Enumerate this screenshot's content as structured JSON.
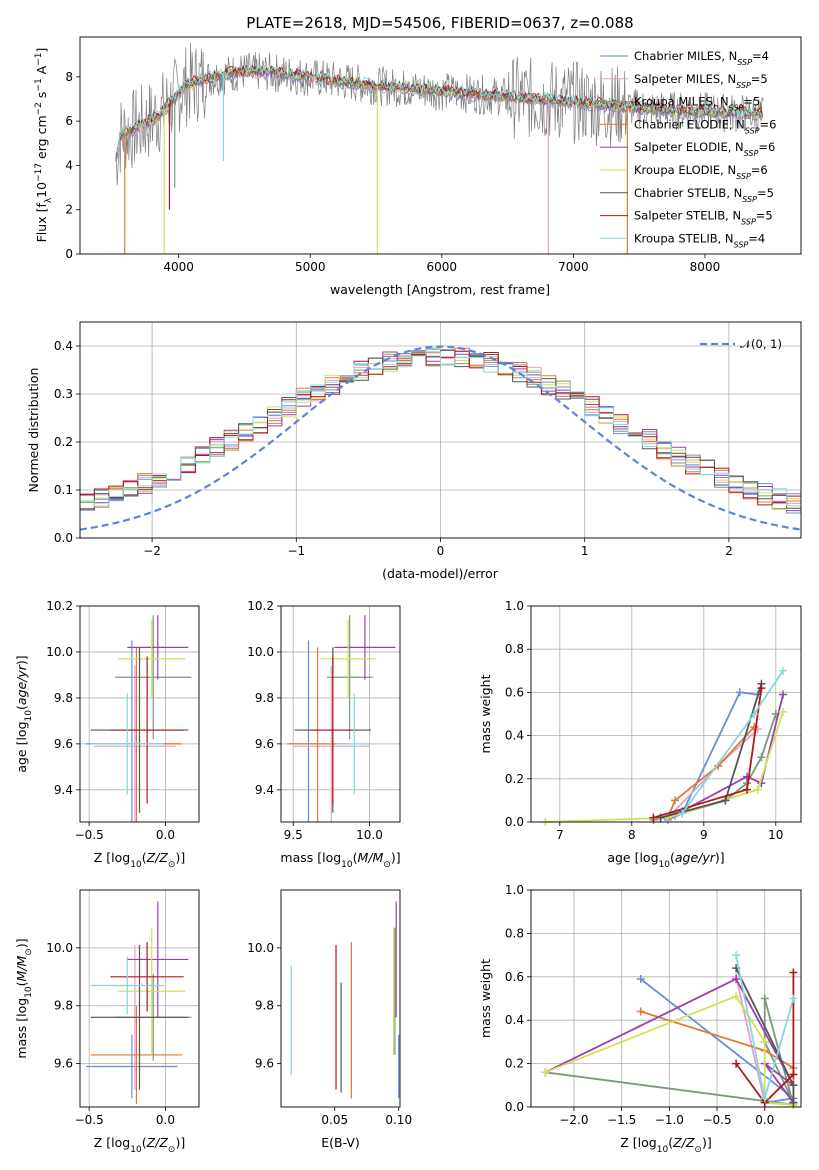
{
  "figure_title": "PLATE=2618, MJD=54506, FIBERID=0637, z=0.088",
  "series_colors": [
    "#6a8fd6",
    "#e9a0c8",
    "#7a9a7a",
    "#e07a3a",
    "#9b3fb0",
    "#cfe25a",
    "#555555",
    "#b01818",
    "#86d8dc"
  ],
  "chart_data": [
    {
      "type": "line",
      "title": "PLATE=2618, MJD=54506, FIBERID=0637, z=0.088",
      "xlabel": "wavelength [Angstrom, rest frame]",
      "ylabel": "Flux [f_λ 10^-17 erg cm^-2 s^-1 A^-1]",
      "xlim": [
        3250,
        8730
      ],
      "ylim": [
        0,
        9.8
      ],
      "xticks": [
        "4000",
        "5000",
        "6000",
        "7000",
        "8000"
      ],
      "yticks": [
        "0",
        "2",
        "4",
        "6",
        "8"
      ],
      "grid": false,
      "legend_placement": "upper right",
      "legend": [
        "Chabrier MILES, N_SSP=4",
        "Salpeter MILES, N_SSP=5",
        "Kroupa MILES, N_SSP=5",
        "Chabrier ELODIE, N_SSP=6",
        "Salpeter ELODIE, N_SSP=6",
        "Kroupa ELODIE, N_SSP=6",
        "Chabrier STELIB, N_SSP=5",
        "Salpeter STELIB, N_SSP=5",
        "Kroupa STELIB, N_SSP=4"
      ],
      "continuum": {
        "x": [
          3520,
          3560,
          3650,
          3750,
          3850,
          3950,
          4050,
          4200,
          4350,
          4500,
          4700,
          4900,
          5100,
          5300,
          5500,
          5700,
          5900,
          6100,
          6300,
          6500,
          6700,
          6900,
          7100,
          7300,
          7500,
          7700,
          7900,
          8100,
          8300,
          8450
        ],
        "y": [
          4.2,
          5.4,
          5.6,
          5.9,
          6.3,
          6.9,
          7.6,
          7.9,
          8.1,
          8.25,
          8.2,
          8.05,
          7.9,
          7.75,
          7.6,
          7.5,
          7.4,
          7.3,
          7.2,
          7.1,
          7.0,
          6.9,
          6.8,
          6.7,
          6.6,
          6.5,
          6.45,
          6.4,
          6.35,
          6.3
        ]
      },
      "absorption_features": [
        {
          "x": 3590,
          "depth_to": 0.0
        },
        {
          "x": 3890,
          "depth_to": 0.0
        },
        {
          "x": 3930,
          "depth_to": 2.0
        },
        {
          "x": 3970,
          "depth_to": 3.0
        },
        {
          "x": 4340,
          "depth_to": 4.2
        },
        {
          "x": 5510,
          "depth_to": 0.0
        },
        {
          "x": 6810,
          "depth_to": 0.0
        },
        {
          "x": 7410,
          "depth_to": 0.0
        }
      ]
    },
    {
      "type": "histogram",
      "xlabel": "(data-model)/error",
      "ylabel": "Normed distribution",
      "xlim": [
        -2.5,
        2.5
      ],
      "ylim": [
        0,
        0.45
      ],
      "xticks": [
        "−2",
        "−1",
        "0",
        "1",
        "2"
      ],
      "yticks": [
        "0.0",
        "0.1",
        "0.2",
        "0.3",
        "0.4"
      ],
      "grid": true,
      "reference_curve": {
        "label": "𝒩(0, 1)",
        "mean": 0,
        "sigma": 1
      },
      "bin_width": 0.1,
      "legend_placement": "upper right"
    },
    {
      "type": "errorbar",
      "xlabel": "Z [log10(Z/Z⊙)]",
      "ylabel": "age  [log10(age/yr)]",
      "xlim": [
        -0.56,
        0.22
      ],
      "ylim": [
        9.26,
        10.2
      ],
      "xticks": [
        "−0.5",
        "0.0"
      ],
      "yticks": [
        "9.4",
        "9.6",
        "9.8",
        "10.0",
        "10.2"
      ],
      "grid": true,
      "points": [
        {
          "s": 0,
          "x": -0.22,
          "y": 9.6,
          "xerr": 0.3,
          "yerr": 0.45
        },
        {
          "s": 1,
          "x": -0.2,
          "y": 9.59,
          "xerr": 0.27,
          "yerr": 0.35
        },
        {
          "s": 2,
          "x": -0.08,
          "y": 9.89,
          "xerr": 0.25,
          "yerr": 0.27
        },
        {
          "s": 3,
          "x": -0.19,
          "y": 9.6,
          "xerr": 0.3,
          "yerr": 0.42
        },
        {
          "s": 4,
          "x": -0.05,
          "y": 10.02,
          "xerr": 0.2,
          "yerr": 0.14
        },
        {
          "s": 5,
          "x": -0.09,
          "y": 9.97,
          "xerr": 0.22,
          "yerr": 0.17
        },
        {
          "s": 6,
          "x": -0.17,
          "y": 9.66,
          "xerr": 0.32,
          "yerr": 0.36
        },
        {
          "s": 7,
          "x": -0.12,
          "y": 9.66,
          "xerr": 0.24,
          "yerr": 0.32
        },
        {
          "s": 8,
          "x": -0.25,
          "y": 9.6,
          "xerr": 0.24,
          "yerr": 0.22
        }
      ]
    },
    {
      "type": "errorbar",
      "xlabel": "mass [log10(M/M⊙)]",
      "ylabel": "",
      "xlim": [
        9.42,
        10.2
      ],
      "ylim": [
        9.26,
        10.2
      ],
      "xticks": [
        "9.5",
        "10.0"
      ],
      "yticks": [
        "9.4",
        "9.6",
        "9.8",
        "10.0",
        "10.2"
      ],
      "grid": true,
      "points": [
        {
          "s": 0,
          "x": 9.6,
          "y": 9.6,
          "xerr": 0.12,
          "yerr": 0.45
        },
        {
          "s": 1,
          "x": 9.75,
          "y": 9.59,
          "xerr": 0.25,
          "yerr": 0.35
        },
        {
          "s": 2,
          "x": 9.87,
          "y": 9.89,
          "xerr": 0.15,
          "yerr": 0.27
        },
        {
          "s": 3,
          "x": 9.66,
          "y": 9.6,
          "xerr": 0.2,
          "yerr": 0.42
        },
        {
          "s": 4,
          "x": 9.97,
          "y": 10.02,
          "xerr": 0.2,
          "yerr": 0.14
        },
        {
          "s": 5,
          "x": 9.86,
          "y": 9.97,
          "xerr": 0.18,
          "yerr": 0.17
        },
        {
          "s": 6,
          "x": 9.76,
          "y": 9.66,
          "xerr": 0.25,
          "yerr": 0.36
        },
        {
          "s": 7,
          "x": 9.76,
          "y": 9.66,
          "xerr": 0.15,
          "yerr": 0.32
        },
        {
          "s": 8,
          "x": 9.9,
          "y": 9.6,
          "xerr": 0.12,
          "yerr": 0.22
        }
      ]
    },
    {
      "type": "line",
      "xlabel": "age  [log10(age/yr)]",
      "ylabel": "mass weight",
      "xlim": [
        6.6,
        10.35
      ],
      "ylim": [
        0,
        1.0
      ],
      "xticks": [
        "7",
        "8",
        "9",
        "10"
      ],
      "yticks": [
        "0.0",
        "0.2",
        "0.4",
        "0.6",
        "0.8",
        "1.0"
      ],
      "grid": true,
      "series": [
        {
          "s": 0,
          "x": [
            8.5,
            8.7,
            9.5,
            9.75
          ],
          "y": [
            0.01,
            0.04,
            0.6,
            0.59
          ]
        },
        {
          "s": 1,
          "x": [
            8.5,
            9.2,
            9.75
          ],
          "y": [
            0.02,
            0.26,
            0.43
          ]
        },
        {
          "s": 2,
          "x": [
            8.3,
            8.6,
            9.3,
            9.6,
            9.8,
            10.0
          ],
          "y": [
            0.01,
            0.03,
            0.1,
            0.18,
            0.3,
            0.5
          ]
        },
        {
          "s": 3,
          "x": [
            8.5,
            8.6,
            9.2,
            9.7
          ],
          "y": [
            0.02,
            0.1,
            0.26,
            0.44
          ]
        },
        {
          "s": 4,
          "x": [
            8.4,
            8.7,
            9.6,
            9.8,
            10.1
          ],
          "y": [
            0.02,
            0.05,
            0.21,
            0.18,
            0.59
          ]
        },
        {
          "s": 5,
          "x": [
            6.8,
            8.5,
            9.75,
            10.1
          ],
          "y": [
            0.0,
            0.02,
            0.15,
            0.51
          ]
        },
        {
          "s": 6,
          "x": [
            8.4,
            9.3,
            9.8
          ],
          "y": [
            0.02,
            0.1,
            0.64
          ]
        },
        {
          "s": 7,
          "x": [
            8.3,
            9.6,
            9.8
          ],
          "y": [
            0.02,
            0.15,
            0.62
          ]
        },
        {
          "s": 8,
          "x": [
            8.7,
            9.7,
            10.1
          ],
          "y": [
            0.04,
            0.5,
            0.7
          ]
        }
      ]
    },
    {
      "type": "errorbar",
      "xlabel": "Z [log10(Z/Z⊙)]",
      "ylabel": "mass [log10(M/M⊙)]",
      "xlim": [
        -0.56,
        0.22
      ],
      "ylim": [
        9.45,
        10.2
      ],
      "xticks": [
        "−0.5",
        "0.0"
      ],
      "yticks": [
        "9.6",
        "9.8",
        "10.0"
      ],
      "grid": true,
      "points": [
        {
          "s": 0,
          "x": -0.22,
          "y": 9.59,
          "xerr": 0.3,
          "yerr": 0.11
        },
        {
          "s": 1,
          "x": -0.2,
          "y": 9.76,
          "xerr": 0.27,
          "yerr": 0.25
        },
        {
          "s": 2,
          "x": -0.08,
          "y": 9.76,
          "xerr": 0.25,
          "yerr": 0.15
        },
        {
          "s": 3,
          "x": -0.19,
          "y": 9.63,
          "xerr": 0.3,
          "yerr": 0.17
        },
        {
          "s": 4,
          "x": -0.05,
          "y": 9.96,
          "xerr": 0.2,
          "yerr": 0.2
        },
        {
          "s": 5,
          "x": -0.09,
          "y": 9.85,
          "xerr": 0.22,
          "yerr": 0.22
        },
        {
          "s": 6,
          "x": -0.17,
          "y": 9.76,
          "xerr": 0.32,
          "yerr": 0.25
        },
        {
          "s": 7,
          "x": -0.12,
          "y": 9.9,
          "xerr": 0.24,
          "yerr": 0.12
        },
        {
          "s": 8,
          "x": -0.25,
          "y": 9.87,
          "xerr": 0.24,
          "yerr": 0.1
        }
      ]
    },
    {
      "type": "errorbar",
      "xlabel": "E(B-V)",
      "ylabel": "",
      "xlim": [
        0.008,
        0.101
      ],
      "ylim": [
        9.45,
        10.2
      ],
      "xticks": [
        "0.05",
        "0.10"
      ],
      "yticks": [
        "9.6",
        "9.8",
        "10.0"
      ],
      "grid": false,
      "points": [
        {
          "s": 0,
          "x": 0.1,
          "y": 9.59,
          "xerr": 0,
          "yerr": 0.11
        },
        {
          "s": 1,
          "x": 0.063,
          "y": 9.76,
          "xerr": 0,
          "yerr": 0.25
        },
        {
          "s": 2,
          "x": 0.097,
          "y": 9.85,
          "xerr": 0,
          "yerr": 0.22
        },
        {
          "s": 3,
          "x": 0.063,
          "y": 9.75,
          "xerr": 0,
          "yerr": 0.27
        },
        {
          "s": 4,
          "x": 0.098,
          "y": 9.96,
          "xerr": 0,
          "yerr": 0.2
        },
        {
          "s": 5,
          "x": 0.096,
          "y": 9.85,
          "xerr": 0,
          "yerr": 0.22
        },
        {
          "s": 6,
          "x": 0.055,
          "y": 9.69,
          "xerr": 0,
          "yerr": 0.19
        },
        {
          "s": 7,
          "x": 0.051,
          "y": 9.76,
          "xerr": 0,
          "yerr": 0.25
        },
        {
          "s": 8,
          "x": 0.016,
          "y": 9.75,
          "xerr": 0,
          "yerr": 0.19
        }
      ]
    },
    {
      "type": "line",
      "xlabel": "Z [log10(Z/Z⊙)]",
      "ylabel": "mass weight",
      "xlim": [
        -2.45,
        0.38
      ],
      "ylim": [
        0,
        1.0
      ],
      "xticks": [
        "−2.0",
        "−1.5",
        "−1.0",
        "−0.5",
        "0.0"
      ],
      "yticks": [
        "0.0",
        "0.2",
        "0.4",
        "0.6",
        "0.8",
        "1.0"
      ],
      "grid": true,
      "series": [
        {
          "s": 0,
          "x": [
            -1.3,
            0.3,
            0.0
          ],
          "y": [
            0.59,
            0.04,
            0.02
          ]
        },
        {
          "s": 1,
          "x": [
            0.3,
            0.0,
            -0.3
          ],
          "y": [
            0.01,
            0.02,
            0.6
          ]
        },
        {
          "s": 2,
          "x": [
            -2.3,
            0.3,
            0.0,
            0.0,
            0.3
          ],
          "y": [
            0.16,
            0.01,
            0.5,
            0.3,
            0.02
          ]
        },
        {
          "s": 3,
          "x": [
            -1.3,
            0.0,
            0.3,
            0.3
          ],
          "y": [
            0.44,
            0.26,
            0.18,
            0.02
          ]
        },
        {
          "s": 4,
          "x": [
            -2.3,
            -0.3,
            0.3,
            0.0,
            0.3
          ],
          "y": [
            0.16,
            0.59,
            0.1,
            0.2,
            0.02
          ]
        },
        {
          "s": 5,
          "x": [
            -2.3,
            -0.3,
            0.0,
            0.0,
            0.3
          ],
          "y": [
            0.16,
            0.51,
            0.3,
            0.02,
            0.01
          ]
        },
        {
          "s": 6,
          "x": [
            -0.3,
            0.3,
            0.3
          ],
          "y": [
            0.64,
            0.1,
            0.02
          ]
        },
        {
          "s": 7,
          "x": [
            -0.3,
            0.0,
            0.3,
            0.3
          ],
          "y": [
            0.2,
            0.02,
            0.15,
            0.62
          ]
        },
        {
          "s": 8,
          "x": [
            -0.3,
            0.0,
            0.3
          ],
          "y": [
            0.7,
            0.04,
            0.5
          ]
        }
      ]
    }
  ]
}
